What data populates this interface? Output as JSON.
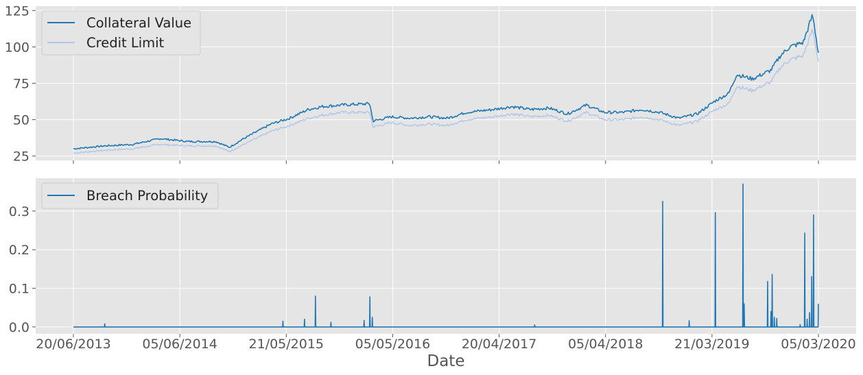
{
  "chart_data": [
    {
      "type": "line",
      "title": "",
      "xlabel": "",
      "ylabel": "",
      "ylim": [
        22,
        128
      ],
      "yticks": [
        25,
        50,
        75,
        100,
        125
      ],
      "grid": true,
      "legend_placement": "upper-left",
      "x": [
        "20/06/2013",
        "01/10/2013",
        "01/01/2014",
        "01/04/2014",
        "01/07/2014",
        "01/10/2014",
        "15/11/2014",
        "01/01/2015",
        "01/04/2015",
        "01/06/2015",
        "01/08/2015",
        "15/09/2015",
        "15/11/2015",
        "20/02/2016",
        "01/03/2016",
        "01/05/2016",
        "01/07/2016",
        "01/09/2016",
        "01/11/2016",
        "01/01/2017",
        "01/04/2017",
        "01/06/2017",
        "01/08/2017",
        "01/10/2017",
        "01/12/2017",
        "01/02/2018",
        "01/04/2018",
        "01/06/2018",
        "01/08/2018",
        "01/10/2018",
        "01/12/2018",
        "01/02/2019",
        "01/04/2019",
        "15/05/2019",
        "10/06/2019",
        "01/08/2019",
        "01/10/2019",
        "01/11/2019",
        "01/12/2019",
        "15/01/2020",
        "15/02/2020",
        "05/03/2020"
      ],
      "series": [
        {
          "name": "Collateral Value",
          "color": "#1f77b4",
          "values": [
            30,
            32,
            33,
            37,
            35,
            35,
            31,
            37,
            47,
            51,
            57,
            59,
            60,
            61,
            49,
            52,
            51,
            52,
            51,
            55,
            57,
            59,
            57,
            58,
            54,
            60,
            55,
            55,
            57,
            55,
            51,
            54,
            63,
            68,
            81,
            78,
            84,
            94,
            100,
            103,
            122,
            96
          ]
        },
        {
          "name": "Credit Limit",
          "color": "#aec7e8",
          "values": [
            27,
            29,
            30,
            33,
            32,
            32,
            28,
            33,
            42,
            46,
            51,
            53,
            55,
            55,
            45,
            48,
            46,
            47,
            46,
            50,
            52,
            54,
            52,
            53,
            49,
            55,
            50,
            50,
            52,
            50,
            46,
            49,
            57,
            61,
            73,
            70,
            76,
            86,
            91,
            94,
            112,
            90
          ]
        }
      ]
    },
    {
      "type": "line",
      "title": "",
      "xlabel": "Date",
      "ylabel": "",
      "ylim": [
        -0.018,
        0.385
      ],
      "yticks": [
        0.0,
        0.1,
        0.2,
        0.3
      ],
      "grid": true,
      "legend_placement": "upper-left",
      "xticks": [
        "20/06/2013",
        "05/06/2014",
        "21/05/2015",
        "05/05/2016",
        "20/04/2017",
        "05/04/2018",
        "21/03/2019",
        "05/03/2020"
      ],
      "series": [
        {
          "name": "Breach Probability",
          "color": "#1f77b4",
          "baseline": 0.0,
          "spikes": [
            {
              "x": "01/10/2013",
              "y": 0.008
            },
            {
              "x": "10/05/2015",
              "y": 0.015
            },
            {
              "x": "20/07/2015",
              "y": 0.02
            },
            {
              "x": "25/08/2015",
              "y": 0.08
            },
            {
              "x": "15/10/2015",
              "y": 0.012
            },
            {
              "x": "01/02/2016",
              "y": 0.017
            },
            {
              "x": "20/02/2016",
              "y": 0.078
            },
            {
              "x": "28/02/2016",
              "y": 0.025
            },
            {
              "x": "15/08/2017",
              "y": 0.005
            },
            {
              "x": "10/10/2018",
              "y": 0.325
            },
            {
              "x": "05/01/2019",
              "y": 0.016
            },
            {
              "x": "01/04/2019",
              "y": 0.296
            },
            {
              "x": "01/07/2019",
              "y": 0.37
            },
            {
              "x": "05/07/2019",
              "y": 0.06
            },
            {
              "x": "20/09/2019",
              "y": 0.118
            },
            {
              "x": "01/10/2019",
              "y": 0.04
            },
            {
              "x": "05/10/2019",
              "y": 0.136
            },
            {
              "x": "12/10/2019",
              "y": 0.025
            },
            {
              "x": "20/10/2019",
              "y": 0.022
            },
            {
              "x": "05/01/2020",
              "y": 0.006
            },
            {
              "x": "20/01/2020",
              "y": 0.243
            },
            {
              "x": "28/01/2020",
              "y": 0.02
            },
            {
              "x": "05/02/2020",
              "y": 0.037
            },
            {
              "x": "12/02/2020",
              "y": 0.13
            },
            {
              "x": "18/02/2020",
              "y": 0.29
            },
            {
              "x": "05/03/2020",
              "y": 0.06
            }
          ]
        }
      ]
    }
  ]
}
